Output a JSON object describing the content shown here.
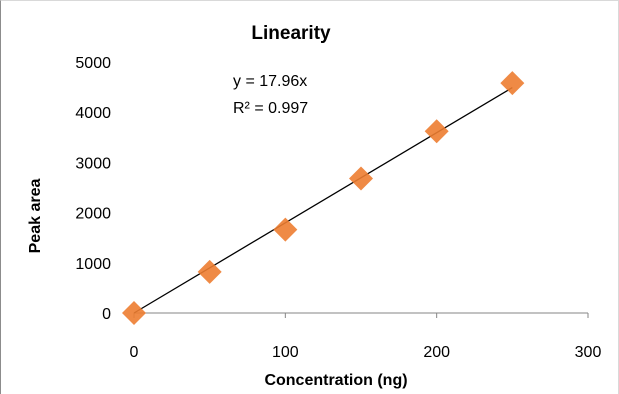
{
  "chart_data": {
    "type": "scatter",
    "title": "Linearity",
    "xlabel": "Concentration (ng)",
    "ylabel": "Peak area",
    "xlim": [
      0,
      300
    ],
    "ylim": [
      0,
      5000
    ],
    "x_ticks": [
      "0",
      "100",
      "200",
      "300"
    ],
    "y_ticks": [
      "0",
      "1000",
      "2000",
      "3000",
      "4000",
      "5000"
    ],
    "grid": false,
    "series": [
      {
        "x": [
          0,
          50,
          100,
          150,
          200,
          250
        ],
        "y": [
          0,
          820,
          1660,
          2680,
          3620,
          4580
        ],
        "marker": "diamond",
        "color": "#ED7D31"
      }
    ],
    "trendline": {
      "slope": 17.96,
      "intercept": 0,
      "x_range": [
        0,
        250
      ],
      "color": "#000000",
      "equation": "y = 17.96x",
      "r_squared": "R² = 0.997"
    }
  }
}
